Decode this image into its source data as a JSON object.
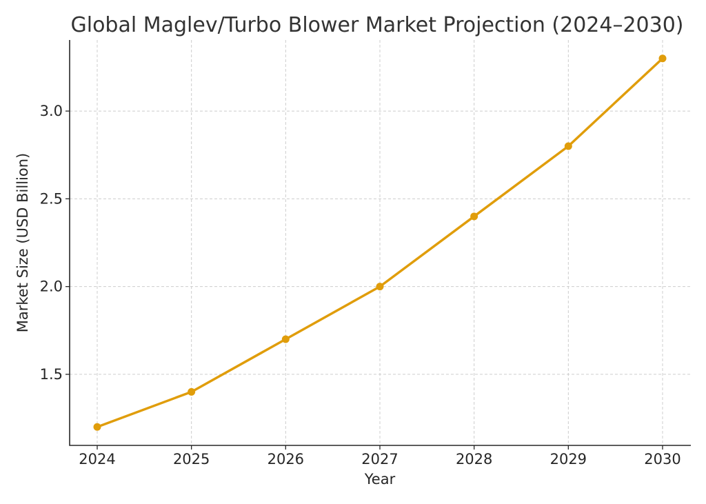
{
  "chart_data": {
    "type": "line",
    "title": "Global Maglev/Turbo Blower Market Projection (2024–2030)",
    "xlabel": "Year",
    "ylabel": "Market Size (USD Billion)",
    "x": [
      "2024",
      "2025",
      "2026",
      "2027",
      "2028",
      "2029",
      "2030"
    ],
    "series": [
      {
        "values": [
          1.2,
          1.4,
          1.7,
          2.0,
          2.4,
          2.8,
          3.3
        ]
      }
    ],
    "yticks": [
      "1.5",
      "2.0",
      "2.5",
      "3.0"
    ],
    "ylim": [
      1.095,
      3.405
    ],
    "grid": true,
    "line_color": "#E09D0B",
    "marker": "circle"
  }
}
